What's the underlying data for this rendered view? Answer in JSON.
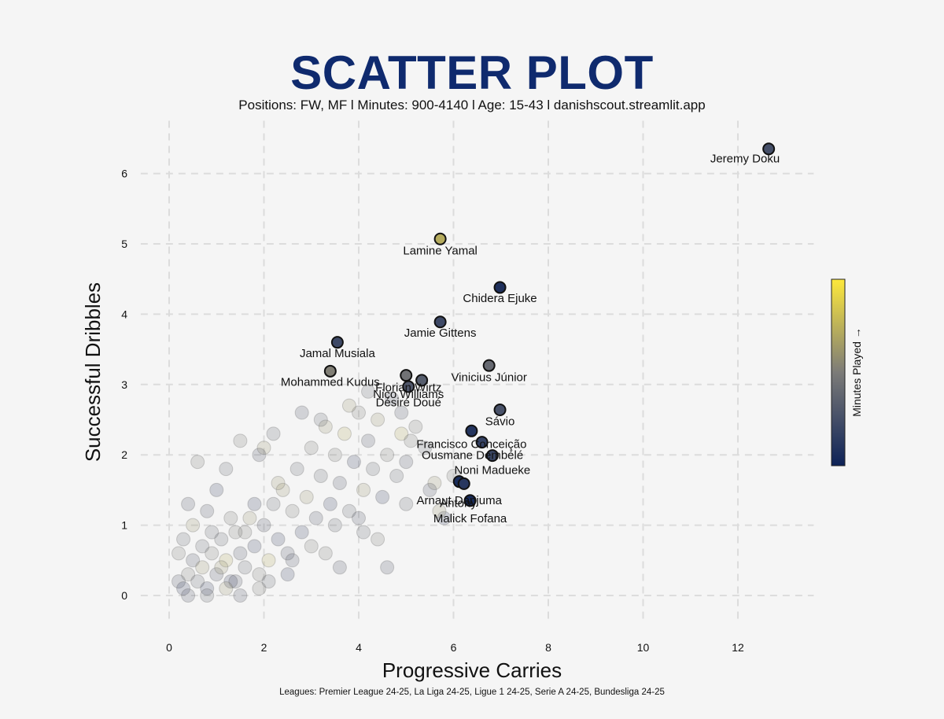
{
  "title": "SCATTER PLOT",
  "subtitle": "Positions: FW, MF  l Minutes: 900-4140 l Age: 15-43  l danishscout.streamlit.app",
  "footer": "Leagues: Premier League 24-25, La Liga 24-25, Ligue 1 24-25, Serie A 24-25, Bundesliga 24-25",
  "colors": {
    "background": "#f5f5f5",
    "title": "#0f2a6e",
    "colormap_low": "#0d2257",
    "colormap_mid": "#7c7b78",
    "colormap_high": "#fde83b",
    "grid": "#dcdcdc"
  },
  "chart_data": {
    "type": "scatter",
    "title": "SCATTER PLOT",
    "xlabel": "Progressive Carries",
    "ylabel": "Successful Dribbles",
    "xlim": [
      -0.6,
      13.6
    ],
    "ylim": [
      -0.4,
      6.75
    ],
    "xticks": [
      0,
      2,
      4,
      6,
      8,
      10,
      12
    ],
    "yticks": [
      0,
      1,
      2,
      3,
      4,
      5,
      6
    ],
    "grid": true,
    "grid_style": "dashed",
    "colorbar_label": "Minutes Played →",
    "colormap": "cividis",
    "highlighted": [
      {
        "name": "Jeremy Doku",
        "x": 12.65,
        "y": 6.35,
        "c": 0.25
      },
      {
        "name": "Lamine Yamal",
        "x": 5.72,
        "y": 5.07,
        "c": 0.72
      },
      {
        "name": "Chidera Ejuke",
        "x": 6.98,
        "y": 4.38,
        "c": 0.08
      },
      {
        "name": "Jamie Gittens",
        "x": 5.72,
        "y": 3.89,
        "c": 0.22
      },
      {
        "name": "Jamal Musiala",
        "x": 3.55,
        "y": 3.6,
        "c": 0.22
      },
      {
        "name": "Mohammed Kudus",
        "x": 3.4,
        "y": 3.19,
        "c": 0.52
      },
      {
        "name": "Vinicius Júnior",
        "x": 6.75,
        "y": 3.27,
        "c": 0.4
      },
      {
        "name": "Florian Wirtz",
        "x": 5.33,
        "y": 3.06,
        "c": 0.33
      },
      {
        "name": "Nico Williams",
        "x": 5.0,
        "y": 3.13,
        "c": 0.45
      },
      {
        "name": "Désiré Doué",
        "x": 5.05,
        "y": 2.97,
        "c": 0.3
      },
      {
        "name": "Sávio",
        "x": 6.98,
        "y": 2.64,
        "c": 0.27
      },
      {
        "name": "Francisco Conceição",
        "x": 6.38,
        "y": 2.34,
        "c": 0.1
      },
      {
        "name": "Ousmane Dembélé",
        "x": 6.6,
        "y": 2.18,
        "c": 0.18
      },
      {
        "name": "Noni Madueke",
        "x": 6.82,
        "y": 1.99,
        "c": 0.2
      },
      {
        "name": "Arnaut Danjuma",
        "x": 6.12,
        "y": 1.62,
        "c": 0.06
      },
      {
        "name": "Antony",
        "x": 6.22,
        "y": 1.59,
        "c": 0.12
      },
      {
        "name": "Malick Fofana",
        "x": 6.35,
        "y": 1.35,
        "c": 0.05
      }
    ],
    "labels_drawn": [
      {
        "name": "Jeremy Doku",
        "x": 12.15,
        "y": 6.16
      },
      {
        "name": "Lamine Yamal",
        "x": 5.72,
        "y": 4.85
      },
      {
        "name": "Chidera Ejuke",
        "x": 6.98,
        "y": 4.17
      },
      {
        "name": "Jamie Gittens",
        "x": 5.72,
        "y": 3.68
      },
      {
        "name": "Jamal Musiala",
        "x": 3.55,
        "y": 3.39
      },
      {
        "name": "Mohammed Kudus",
        "x": 3.4,
        "y": 2.98
      },
      {
        "name": "Vinicius Júnior",
        "x": 6.75,
        "y": 3.05
      },
      {
        "name": "Florian Wirtz",
        "x": 5.05,
        "y": 2.9
      },
      {
        "name": "Nico Williams",
        "x": 5.05,
        "y": 2.81
      },
      {
        "name": "Désiré Doué",
        "x": 5.05,
        "y": 2.69
      },
      {
        "name": "Sávio",
        "x": 6.98,
        "y": 2.42
      },
      {
        "name": "Francisco Conceição",
        "x": 6.38,
        "y": 2.1
      },
      {
        "name": "Ousmane Dembélé",
        "x": 6.4,
        "y": 1.94
      },
      {
        "name": "Noni Madueke",
        "x": 6.82,
        "y": 1.73
      },
      {
        "name": "Arnaut Danjuma",
        "x": 6.12,
        "y": 1.3
      },
      {
        "name": "Antony",
        "x": 6.1,
        "y": 1.26
      },
      {
        "name": "Malick Fofana",
        "x": 6.35,
        "y": 1.04
      }
    ],
    "background_series": {
      "name": "Other players",
      "points": [
        [
          0.2,
          0.2,
          0.3
        ],
        [
          0.3,
          0.1,
          0.2
        ],
        [
          0.4,
          0.3,
          0.5
        ],
        [
          0.5,
          0.5,
          0.3
        ],
        [
          0.6,
          0.2,
          0.4
        ],
        [
          0.7,
          0.4,
          0.6
        ],
        [
          0.8,
          0.1,
          0.2
        ],
        [
          0.9,
          0.6,
          0.5
        ],
        [
          1.0,
          0.3,
          0.3
        ],
        [
          1.1,
          0.8,
          0.4
        ],
        [
          1.2,
          0.5,
          0.7
        ],
        [
          1.3,
          0.2,
          0.2
        ],
        [
          1.4,
          0.9,
          0.5
        ],
        [
          1.5,
          0.6,
          0.3
        ],
        [
          1.6,
          0.4,
          0.4
        ],
        [
          1.7,
          1.1,
          0.6
        ],
        [
          1.8,
          0.7,
          0.2
        ],
        [
          1.9,
          0.3,
          0.5
        ],
        [
          2.0,
          1.0,
          0.3
        ],
        [
          2.1,
          0.5,
          0.7
        ],
        [
          2.2,
          1.3,
          0.4
        ],
        [
          2.3,
          0.8,
          0.2
        ],
        [
          2.4,
          1.5,
          0.6
        ],
        [
          2.5,
          0.6,
          0.3
        ],
        [
          2.6,
          1.2,
          0.5
        ],
        [
          2.7,
          1.8,
          0.4
        ],
        [
          2.8,
          0.9,
          0.2
        ],
        [
          2.9,
          1.4,
          0.6
        ],
        [
          3.0,
          2.1,
          0.5
        ],
        [
          3.1,
          1.1,
          0.3
        ],
        [
          3.2,
          1.7,
          0.4
        ],
        [
          3.3,
          2.4,
          0.6
        ],
        [
          3.4,
          1.3,
          0.2
        ],
        [
          3.5,
          2.0,
          0.5
        ],
        [
          3.6,
          1.6,
          0.3
        ],
        [
          3.7,
          2.3,
          0.7
        ],
        [
          3.8,
          1.2,
          0.4
        ],
        [
          3.9,
          1.9,
          0.2
        ],
        [
          4.0,
          2.6,
          0.5
        ],
        [
          4.1,
          1.5,
          0.6
        ],
        [
          4.2,
          2.2,
          0.3
        ],
        [
          4.3,
          1.8,
          0.4
        ],
        [
          4.4,
          2.5,
          0.6
        ],
        [
          4.5,
          1.4,
          0.2
        ],
        [
          4.6,
          2.0,
          0.5
        ],
        [
          4.7,
          2.8,
          0.3
        ],
        [
          4.8,
          1.7,
          0.4
        ],
        [
          4.9,
          2.3,
          0.7
        ],
        [
          5.0,
          1.9,
          0.3
        ],
        [
          5.2,
          2.4,
          0.5
        ],
        [
          5.4,
          2.1,
          0.4
        ],
        [
          5.6,
          1.6,
          0.6
        ],
        [
          5.8,
          1.1,
          0.2
        ],
        [
          6.0,
          1.7,
          0.5
        ],
        [
          4.6,
          0.4,
          0.3
        ],
        [
          0.3,
          0.8,
          0.4
        ],
        [
          0.5,
          1.0,
          0.6
        ],
        [
          0.4,
          1.3,
          0.3
        ],
        [
          0.6,
          1.9,
          0.5
        ],
        [
          1.2,
          1.8,
          0.4
        ],
        [
          1.0,
          1.5,
          0.2
        ],
        [
          1.5,
          2.2,
          0.5
        ],
        [
          2.0,
          2.1,
          0.6
        ],
        [
          2.8,
          2.6,
          0.3
        ],
        [
          3.2,
          2.5,
          0.4
        ],
        [
          0.8,
          1.2,
          0.3
        ],
        [
          1.3,
          1.1,
          0.5
        ],
        [
          1.8,
          1.3,
          0.2
        ],
        [
          2.3,
          1.6,
          0.6
        ],
        [
          0.9,
          0.9,
          0.4
        ],
        [
          1.1,
          0.4,
          0.6
        ],
        [
          1.4,
          0.2,
          0.3
        ],
        [
          1.6,
          0.9,
          0.5
        ],
        [
          0.7,
          0.7,
          0.4
        ],
        [
          2.6,
          0.5,
          0.3
        ],
        [
          3.0,
          0.7,
          0.5
        ],
        [
          3.5,
          1.0,
          0.4
        ],
        [
          4.0,
          1.1,
          0.3
        ],
        [
          4.4,
          0.8,
          0.5
        ],
        [
          5.0,
          1.3,
          0.4
        ],
        [
          5.5,
          1.5,
          0.3
        ],
        [
          5.7,
          1.2,
          0.6
        ],
        [
          4.2,
          2.9,
          0.4
        ],
        [
          3.8,
          2.7,
          0.6
        ],
        [
          4.9,
          2.6,
          0.3
        ],
        [
          5.1,
          2.2,
          0.5
        ],
        [
          2.2,
          2.3,
          0.4
        ],
        [
          1.9,
          2.0,
          0.3
        ],
        [
          0.2,
          0.6,
          0.5
        ],
        [
          0.4,
          0.0,
          0.3
        ],
        [
          0.8,
          0.0,
          0.4
        ],
        [
          1.2,
          0.1,
          0.6
        ],
        [
          1.5,
          0.0,
          0.3
        ],
        [
          1.9,
          0.1,
          0.5
        ],
        [
          2.1,
          0.2,
          0.4
        ],
        [
          2.5,
          0.3,
          0.2
        ],
        [
          3.3,
          0.6,
          0.5
        ],
        [
          3.6,
          0.4,
          0.3
        ],
        [
          4.1,
          0.9,
          0.4
        ]
      ]
    }
  }
}
